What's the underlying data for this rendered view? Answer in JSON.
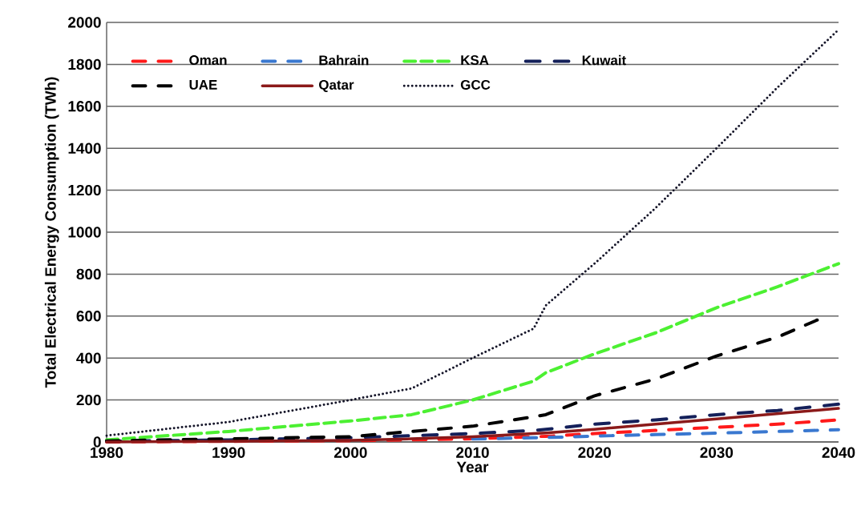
{
  "chart_data": {
    "type": "line",
    "xlabel": "Year",
    "ylabel": "Total Electrical Energy Consumption (TWh)",
    "xlim": [
      1980,
      2040
    ],
    "xticks": [
      1980,
      1990,
      2000,
      2010,
      2020,
      2030,
      2040
    ],
    "ylim": [
      0,
      2000
    ],
    "yticks": [
      0,
      200,
      400,
      600,
      800,
      1000,
      1200,
      1400,
      1600,
      1800,
      2000
    ],
    "grid": "y",
    "legend": "top left",
    "marker": "none",
    "x": [
      1980,
      1990,
      2000,
      2005,
      2010,
      2015,
      2016,
      2020,
      2025,
      2030,
      2035,
      2040
    ],
    "series": [
      {
        "name": "Oman",
        "color": "#ff1a1a",
        "line_style": "dashdot",
        "values": [
          0,
          3,
          6,
          10,
          15,
          25,
          27,
          40,
          55,
          70,
          85,
          105
        ]
      },
      {
        "name": "Bahrain",
        "color": "#3a78d0",
        "line_style": "dashdot",
        "values": [
          null,
          null,
          null,
          null,
          14,
          20,
          21,
          28,
          35,
          42,
          50,
          58
        ]
      },
      {
        "name": "KSA",
        "color": "#4cf032",
        "line_style": "dashed",
        "values": [
          10,
          50,
          100,
          130,
          200,
          290,
          330,
          420,
          520,
          640,
          740,
          850
        ]
      },
      {
        "name": "Kuwait",
        "color": "#14205a",
        "line_style": "longdash",
        "values": [
          3,
          10,
          20,
          30,
          40,
          55,
          60,
          85,
          105,
          130,
          150,
          180
        ]
      },
      {
        "name": "UAE",
        "color": "#000000",
        "line_style": "dashdot",
        "x": [
          1980,
          1990,
          2000,
          2005,
          2010,
          2015,
          2016,
          2020,
          2025,
          2030,
          2035,
          2039
        ],
        "values": [
          5,
          15,
          25,
          50,
          75,
          120,
          130,
          220,
          300,
          410,
          500,
          600
        ]
      },
      {
        "name": "Qatar",
        "color": "#8b1a1a",
        "line_style": "solid",
        "values": [
          0,
          3,
          8,
          15,
          25,
          40,
          43,
          60,
          85,
          110,
          135,
          160
        ]
      },
      {
        "name": "GCC",
        "color": "#141428",
        "line_style": "dotted",
        "values": [
          30,
          95,
          200,
          255,
          400,
          540,
          650,
          850,
          1115,
          1400,
          1690,
          1965
        ]
      }
    ]
  }
}
